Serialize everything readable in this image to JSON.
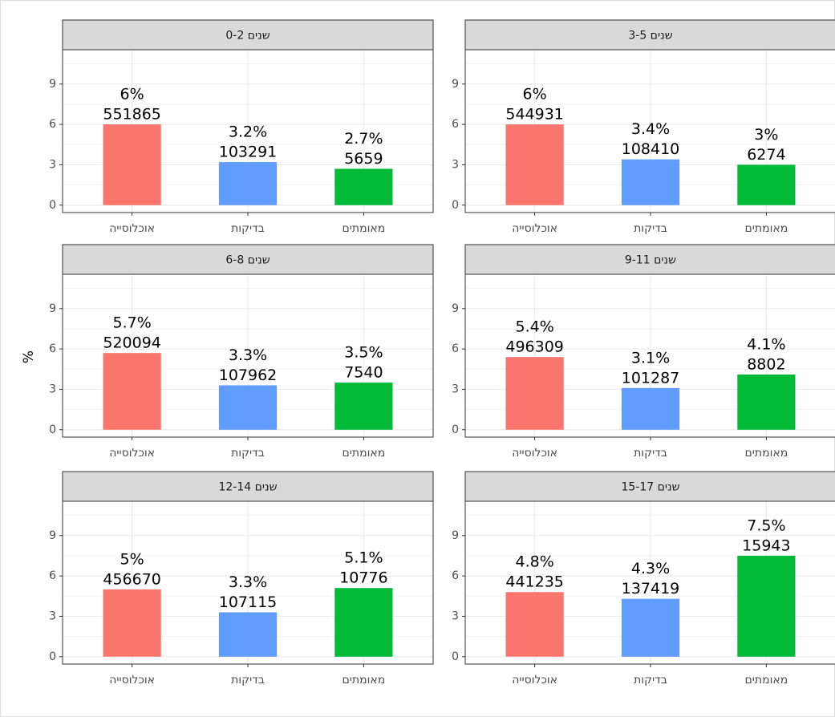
{
  "ylabel": "%",
  "chart_data": [
    {
      "type": "bar",
      "title": "שנים 0-2",
      "categories": [
        "אוכלוסייה",
        "בדיקות",
        "מאומתים"
      ],
      "values": [
        6,
        3.2,
        2.7
      ],
      "value_labels": [
        "6%",
        "3.2%",
        "2.7%"
      ],
      "counts": [
        551865,
        103291,
        5659
      ],
      "colors": [
        "#F8766D",
        "#619CFF",
        "#00BA38"
      ],
      "ylim": [
        -0.55,
        11.55
      ],
      "yticks": [
        0,
        3,
        6,
        9
      ],
      "grid": true
    },
    {
      "type": "bar",
      "title": "שנים 3-5",
      "categories": [
        "אוכלוסייה",
        "בדיקות",
        "מאומתים"
      ],
      "values": [
        6,
        3.4,
        3
      ],
      "value_labels": [
        "6%",
        "3.4%",
        "3%"
      ],
      "counts": [
        544931,
        108410,
        6274
      ],
      "colors": [
        "#F8766D",
        "#619CFF",
        "#00BA38"
      ],
      "ylim": [
        -0.55,
        11.55
      ],
      "yticks": [
        0,
        3,
        6,
        9
      ],
      "grid": true
    },
    {
      "type": "bar",
      "title": "שנים 6-8",
      "categories": [
        "אוכלוסייה",
        "בדיקות",
        "מאומתים"
      ],
      "values": [
        5.7,
        3.3,
        3.5
      ],
      "value_labels": [
        "5.7%",
        "3.3%",
        "3.5%"
      ],
      "counts": [
        520094,
        107962,
        7540
      ],
      "colors": [
        "#F8766D",
        "#619CFF",
        "#00BA38"
      ],
      "ylim": [
        -0.55,
        11.55
      ],
      "yticks": [
        0,
        3,
        6,
        9
      ],
      "grid": true
    },
    {
      "type": "bar",
      "title": "שנים 9-11",
      "categories": [
        "אוכלוסייה",
        "בדיקות",
        "מאומתים"
      ],
      "values": [
        5.4,
        3.1,
        4.1
      ],
      "value_labels": [
        "5.4%",
        "3.1%",
        "4.1%"
      ],
      "counts": [
        496309,
        101287,
        8802
      ],
      "colors": [
        "#F8766D",
        "#619CFF",
        "#00BA38"
      ],
      "ylim": [
        -0.55,
        11.55
      ],
      "yticks": [
        0,
        3,
        6,
        9
      ],
      "grid": true
    },
    {
      "type": "bar",
      "title": "שנים 12-14",
      "categories": [
        "אוכלוסייה",
        "בדיקות",
        "מאומתים"
      ],
      "values": [
        5,
        3.3,
        5.1
      ],
      "value_labels": [
        "5%",
        "3.3%",
        "5.1%"
      ],
      "counts": [
        456670,
        107115,
        10776
      ],
      "colors": [
        "#F8766D",
        "#619CFF",
        "#00BA38"
      ],
      "ylim": [
        -0.55,
        11.55
      ],
      "yticks": [
        0,
        3,
        6,
        9
      ],
      "grid": true
    },
    {
      "type": "bar",
      "title": "שנים 15-17",
      "categories": [
        "אוכלוסייה",
        "בדיקות",
        "מאומתים"
      ],
      "values": [
        4.8,
        4.3,
        7.5
      ],
      "value_labels": [
        "4.8%",
        "4.3%",
        "7.5%"
      ],
      "counts": [
        441235,
        137419,
        15943
      ],
      "colors": [
        "#F8766D",
        "#619CFF",
        "#00BA38"
      ],
      "ylim": [
        -0.55,
        11.55
      ],
      "yticks": [
        0,
        3,
        6,
        9
      ],
      "grid": true
    }
  ]
}
